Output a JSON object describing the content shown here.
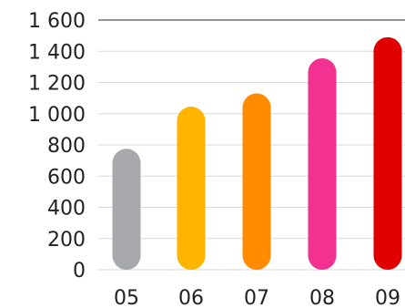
{
  "chart_data": {
    "type": "bar",
    "title": "",
    "xlabel": "",
    "ylabel": "",
    "categories": [
      "05",
      "06",
      "07",
      "08",
      "09"
    ],
    "values": [
      775,
      1045,
      1130,
      1355,
      1490
    ],
    "colors": [
      "#a6a8ab",
      "#ffb400",
      "#ff8c00",
      "#f23190",
      "#e00000"
    ],
    "ylim": [
      0,
      1600
    ],
    "yticks": [
      0,
      200,
      400,
      600,
      800,
      1000,
      1200,
      1400,
      1600
    ],
    "ytick_labels": [
      "0",
      "200",
      "400",
      "600",
      "800",
      "1 000",
      "1 200",
      "1 400",
      "1 600"
    ],
    "grid": true,
    "gridline_color": "#d9d9d9",
    "top_gridline_color": "#555555",
    "legend": "none"
  }
}
